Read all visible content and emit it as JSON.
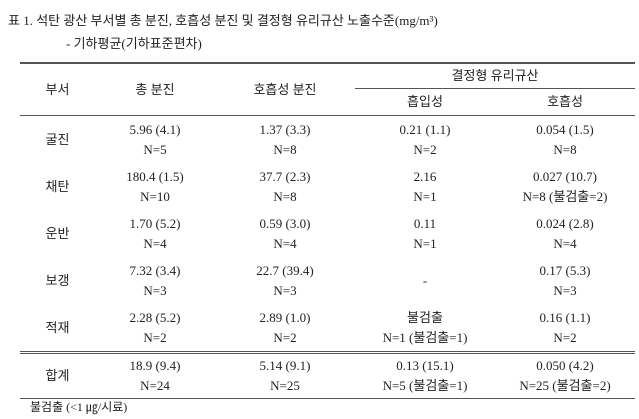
{
  "header": {
    "title": "표 1.  석탄 광산 부서별 총 분진, 호흡성 분진 및 결정형 유리규산 노출수준(mg/m³)",
    "subtitle": "- 기하평균(기하표준편차)"
  },
  "table": {
    "columns": [
      "부서",
      "총 분진",
      "호흡성 분진",
      "결정형 유리규산"
    ],
    "subcolumns": [
      "흡입성",
      "호흡성"
    ],
    "rows": [
      {
        "label": "굴진",
        "cells": [
          [
            "5.96 (4.1)",
            "N=5"
          ],
          [
            "1.37 (3.3)",
            "N=8"
          ],
          [
            "0.21 (1.1)",
            "N=2"
          ],
          [
            "0.054 (1.5)",
            "N=8"
          ]
        ]
      },
      {
        "label": "채탄",
        "cells": [
          [
            "180.4 (1.5)",
            "N=10"
          ],
          [
            "37.7 (2.3)",
            "N=8"
          ],
          [
            "2.16",
            "N=1"
          ],
          [
            "0.027 (10.7)",
            "N=8 (불검출=2)"
          ]
        ]
      },
      {
        "label": "운반",
        "cells": [
          [
            "1.70 (5.2)",
            "N=4"
          ],
          [
            "0.59 (3.0)",
            "N=4"
          ],
          [
            "0.11",
            "N=1"
          ],
          [
            "0.024 (2.8)",
            "N=4"
          ]
        ]
      },
      {
        "label": "보갱",
        "cells": [
          [
            "7.32 (3.4)",
            "N=3"
          ],
          [
            "22.7 (39.4)",
            "N=3"
          ],
          [
            "-"
          ],
          [
            "0.17 (5.3)",
            "N=3"
          ]
        ]
      },
      {
        "label": "적재",
        "cells": [
          [
            "2.28 (5.2)",
            "N=2"
          ],
          [
            "2.89 (1.0)",
            "N=2"
          ],
          [
            "불검출",
            "N=1 (불검출=1)"
          ],
          [
            "0.16 (1.1)",
            "N=2"
          ]
        ]
      },
      {
        "label": "합계",
        "cells": [
          [
            "18.9 (9.4)",
            "N=24"
          ],
          [
            "5.14 (9.1)",
            "N=25"
          ],
          [
            "0.13 (15.1)",
            "N=5 (불검출=1)"
          ],
          [
            "0.050 (4.2)",
            "N=25 (불검출=2)"
          ]
        ]
      }
    ]
  },
  "footnote": "불검출 (<1 ㎍/시료)"
}
